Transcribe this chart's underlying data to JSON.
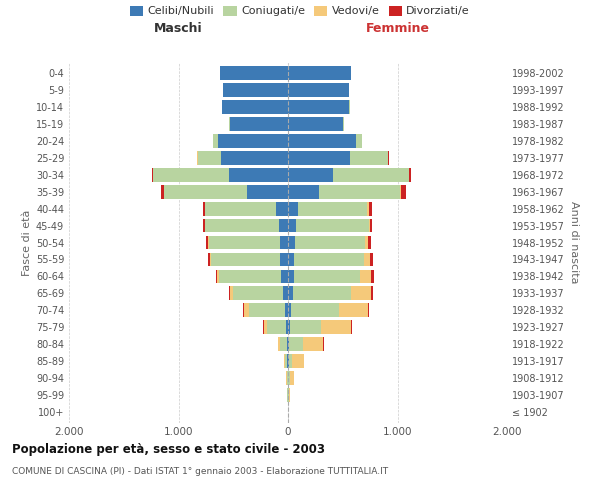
{
  "age_groups": [
    "100+",
    "95-99",
    "90-94",
    "85-89",
    "80-84",
    "75-79",
    "70-74",
    "65-69",
    "60-64",
    "55-59",
    "50-54",
    "45-49",
    "40-44",
    "35-39",
    "30-34",
    "25-29",
    "20-24",
    "15-19",
    "10-14",
    "5-9",
    "0-4"
  ],
  "birth_years": [
    "≤ 1902",
    "1903-1907",
    "1908-1912",
    "1913-1917",
    "1918-1922",
    "1923-1927",
    "1928-1932",
    "1933-1937",
    "1938-1942",
    "1943-1947",
    "1948-1952",
    "1953-1957",
    "1958-1962",
    "1963-1967",
    "1968-1972",
    "1973-1977",
    "1978-1982",
    "1983-1987",
    "1988-1992",
    "1993-1997",
    "1998-2002"
  ],
  "males": {
    "celibi": [
      2,
      2,
      3,
      5,
      10,
      20,
      30,
      45,
      60,
      70,
      75,
      85,
      110,
      370,
      540,
      610,
      640,
      530,
      600,
      590,
      620
    ],
    "coniugati": [
      1,
      3,
      8,
      25,
      60,
      170,
      330,
      460,
      570,
      630,
      650,
      670,
      650,
      760,
      690,
      215,
      45,
      8,
      4,
      2,
      1
    ],
    "vedovi": [
      0,
      1,
      4,
      8,
      20,
      30,
      45,
      25,
      15,
      8,
      4,
      2,
      2,
      4,
      2,
      2,
      1,
      1,
      0,
      0,
      0
    ],
    "divorziati": [
      0,
      0,
      0,
      0,
      2,
      4,
      8,
      8,
      15,
      20,
      22,
      22,
      18,
      30,
      12,
      4,
      2,
      1,
      0,
      0,
      0
    ]
  },
  "females": {
    "nubili": [
      1,
      2,
      4,
      6,
      8,
      15,
      28,
      42,
      52,
      58,
      62,
      72,
      90,
      280,
      410,
      570,
      620,
      500,
      560,
      555,
      575
    ],
    "coniugate": [
      1,
      4,
      12,
      32,
      130,
      290,
      440,
      530,
      610,
      640,
      645,
      665,
      635,
      740,
      695,
      340,
      55,
      8,
      2,
      1,
      1
    ],
    "vedove": [
      2,
      8,
      42,
      110,
      185,
      270,
      260,
      185,
      100,
      52,
      26,
      16,
      12,
      8,
      4,
      4,
      2,
      1,
      1,
      0,
      0
    ],
    "divorziate": [
      0,
      0,
      1,
      1,
      4,
      8,
      12,
      16,
      26,
      26,
      22,
      18,
      26,
      50,
      18,
      4,
      2,
      1,
      0,
      0,
      0
    ]
  },
  "colors": {
    "celibi_nubili": "#3d7ab5",
    "coniugati_e": "#b8d4a0",
    "vedovi_e": "#f5c97a",
    "divorziati_e": "#cc2222"
  },
  "xlim": 2000,
  "title": "Popolazione per età, sesso e stato civile - 2003",
  "subtitle": "COMUNE DI CASCINA (PI) - Dati ISTAT 1° gennaio 2003 - Elaborazione TUTTITALIA.IT",
  "xlabel_left": "Maschi",
  "xlabel_right": "Femmine",
  "ylabel_left": "Fasce di età",
  "ylabel_right": "Anni di nascita",
  "legend_labels": [
    "Celibi/Nubili",
    "Coniugati/e",
    "Vedovi/e",
    "Divorziati/e"
  ],
  "background_color": "#ffffff",
  "grid_color": "#cccccc"
}
